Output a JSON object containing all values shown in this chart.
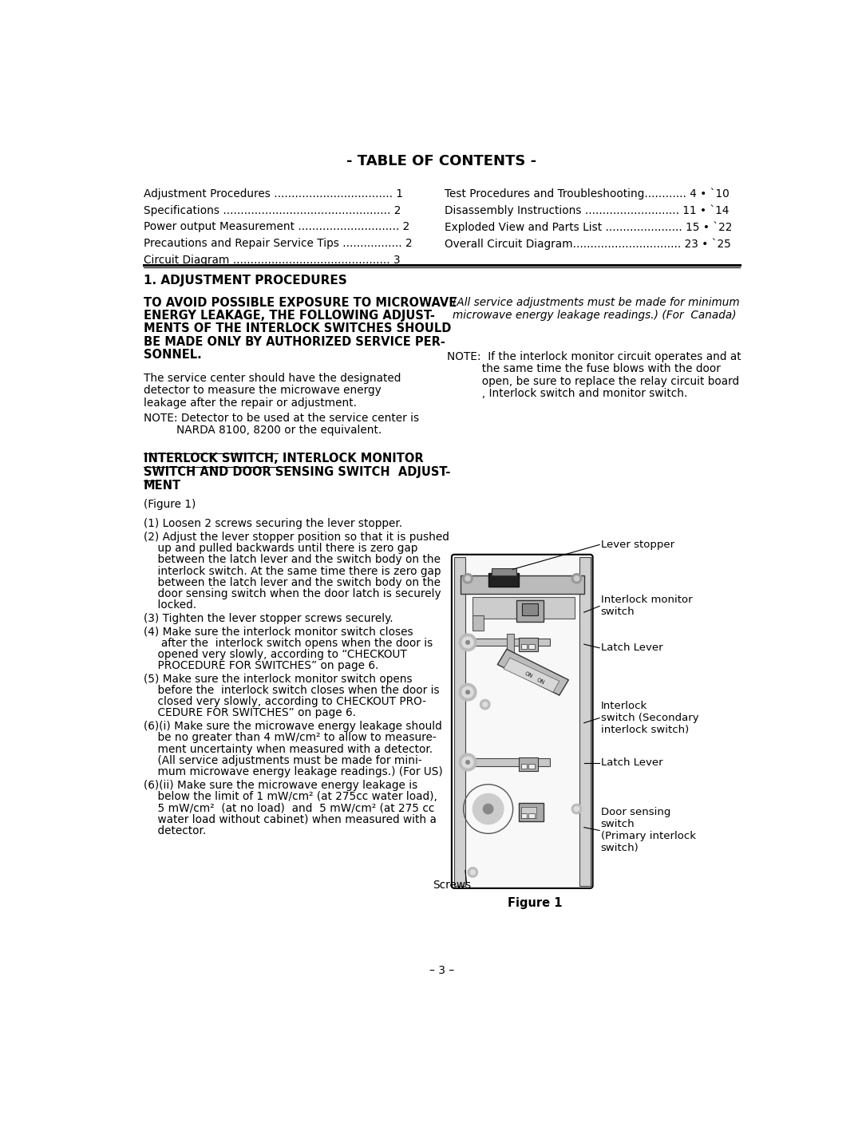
{
  "title": "- TABLE OF CONTENTS -",
  "toc_left": [
    [
      "Adjustment Procedures",
      "1"
    ],
    [
      "Specifications",
      "2"
    ],
    [
      "Power output Measurement",
      "2"
    ],
    [
      "Precautions and Repair Service Tips",
      "2"
    ],
    [
      "Circuit Diagram",
      "3"
    ]
  ],
  "toc_right_entries": [
    [
      "Test Procedures and Troubleshooting............",
      "4 • `10"
    ],
    [
      "Disassembly Instructions ...........................",
      "11 • `14"
    ],
    [
      "Exploded View and Parts List ......................",
      "15 • `22"
    ],
    [
      "Overall Circuit Diagram...............................",
      "23 • `25"
    ]
  ],
  "section_title": "1. ADJUSTMENT PROCEDURES",
  "warning_lines": [
    "TO AVOID POSSIBLE EXPOSURE TO MICROWAVE",
    "ENERGY LEAKAGE, THE FOLLOWING ADJUST-",
    "MENTS OF THE INTERLOCK SWITCHES SHOULD",
    "BE MADE ONLY BY AUTHORIZED SERVICE PER-",
    "SONNEL."
  ],
  "service_lines": [
    "The service center should have the designated",
    "detector to measure the microwave energy",
    "leakage after the repair or adjustment."
  ],
  "note_det_line1": "NOTE: Detector to be used at the service center is",
  "note_det_line2": "        NARDA 8100, 8200 or the equivalent.",
  "interlock_title_lines": [
    "INTERLOCK SWITCH, INTERLOCK MONITOR",
    "SWITCH AND DOOR SENSING SWITCH  ADJUST-",
    "MENT"
  ],
  "figure_ref": "(Figure 1)",
  "steps": [
    [
      "(1) Loosen 2 screws securing the lever stopper."
    ],
    [
      "(2) Adjust the lever stopper position so that it is pushed",
      "    up and pulled backwards until there is zero gap",
      "    between the latch lever and the switch body on the",
      "    interlock switch. At the same time there is zero gap",
      "    between the latch lever and the switch body on the",
      "    door sensing switch when the door latch is securely",
      "    locked."
    ],
    [
      "(3) Tighten the lever stopper screws securely."
    ],
    [
      "(4) Make sure the interlock monitor switch closes",
      "     after the  interlock switch opens when the door is",
      "    opened very slowly, according to “CHECKOUT",
      "    PROCEDURE FOR SWITCHES” on page 6."
    ],
    [
      "(5) Make sure the interlock monitor switch opens",
      "    before the  interlock switch closes when the door is",
      "    closed very slowly, according to CHECKOUT PRO-",
      "    CEDURE FOR SWITCHES” on page 6."
    ],
    [
      "(6)(i) Make sure the microwave energy leakage should",
      "    be no greater than 4 mW/cm² to allow to measure-",
      "    ment uncertainty when measured with a detector.",
      "    (All service adjustments must be made for mini-",
      "    mum microwave energy leakage readings.) (For US)"
    ],
    [
      "(6)(ii) Make sure the microwave energy leakage is",
      "    below the limit of 1 mW/cm² (at 275cc water load),",
      "    5 mW/cm²  (at no load)  and  5 mW/cm² (at 275 cc",
      "    water load without cabinet) when measured with a",
      "    detector."
    ]
  ],
  "canada_lines": [
    "(All service adjustments must be made for minimum",
    "microwave energy leakage readings.) (For  Canada)"
  ],
  "note_int_lines": [
    "NOTE:  If the interlock monitor circuit operates and at",
    "          the same time the fuse blows with the door",
    "          open, be sure to replace the relay circuit board",
    "          , Interlock switch and monitor switch."
  ],
  "page_number": "– 3 –",
  "bg_color": "#ffffff"
}
